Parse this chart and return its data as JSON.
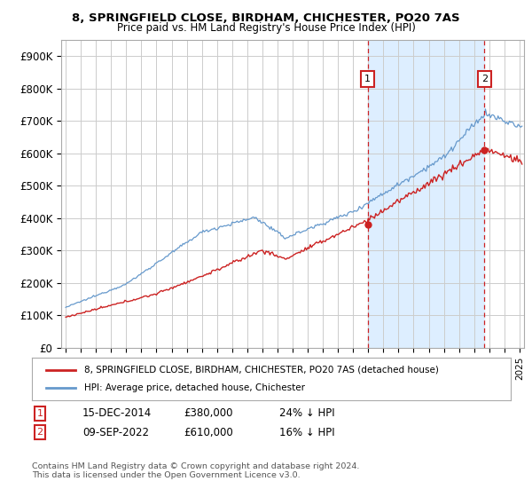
{
  "title": "8, SPRINGFIELD CLOSE, BIRDHAM, CHICHESTER, PO20 7AS",
  "subtitle": "Price paid vs. HM Land Registry's House Price Index (HPI)",
  "ylabel_ticks": [
    "£0",
    "£100K",
    "£200K",
    "£300K",
    "£400K",
    "£500K",
    "£600K",
    "£700K",
    "£800K",
    "£900K"
  ],
  "ytick_vals": [
    0,
    100000,
    200000,
    300000,
    400000,
    500000,
    600000,
    700000,
    800000,
    900000
  ],
  "ylim": [
    0,
    950000
  ],
  "xlim_start": 1994.7,
  "xlim_end": 2025.3,
  "sale1_date": 2014.958,
  "sale1_price": 380000,
  "sale1_label": "1",
  "sale2_date": 2022.69,
  "sale2_price": 610000,
  "sale2_label": "2",
  "hpi_color": "#6699cc",
  "price_color": "#cc2222",
  "shade_color": "#ddeeff",
  "background_color": "#ffffff",
  "grid_color": "#cccccc",
  "legend_label_price": "8, SPRINGFIELD CLOSE, BIRDHAM, CHICHESTER, PO20 7AS (detached house)",
  "legend_label_hpi": "HPI: Average price, detached house, Chichester",
  "annotation1_date": "15-DEC-2014",
  "annotation1_price": "£380,000",
  "annotation1_hpi": "24% ↓ HPI",
  "annotation2_date": "09-SEP-2022",
  "annotation2_price": "£610,000",
  "annotation2_hpi": "16% ↓ HPI",
  "footnote": "Contains HM Land Registry data © Crown copyright and database right 2024.\nThis data is licensed under the Open Government Licence v3.0."
}
